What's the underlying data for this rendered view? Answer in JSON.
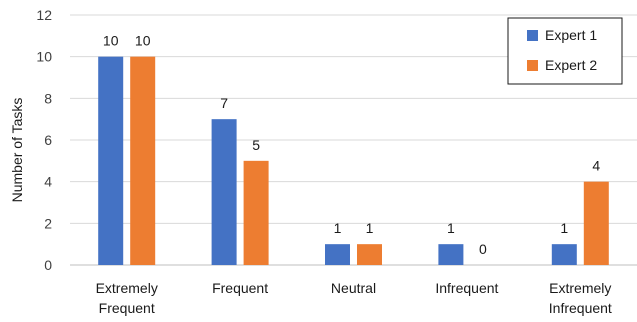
{
  "chart_data": {
    "type": "bar",
    "title": "",
    "xlabel": "",
    "ylabel": "Number of Tasks",
    "ylim": [
      0,
      12
    ],
    "yticks": [
      0,
      2,
      4,
      6,
      8,
      10,
      12
    ],
    "grid": true,
    "legend_position": "top-right",
    "categories": [
      [
        "Extremely",
        "Frequent"
      ],
      [
        "Frequent"
      ],
      [
        "Neutral"
      ],
      [
        "Infrequent"
      ],
      [
        "Extremely",
        "Infrequent"
      ]
    ],
    "series": [
      {
        "name": "Expert 1",
        "color": "#4472C4",
        "values": [
          10,
          7,
          1,
          1,
          1
        ]
      },
      {
        "name": "Expert 2",
        "color": "#ED7D31",
        "values": [
          10,
          5,
          1,
          0,
          4
        ]
      }
    ]
  }
}
